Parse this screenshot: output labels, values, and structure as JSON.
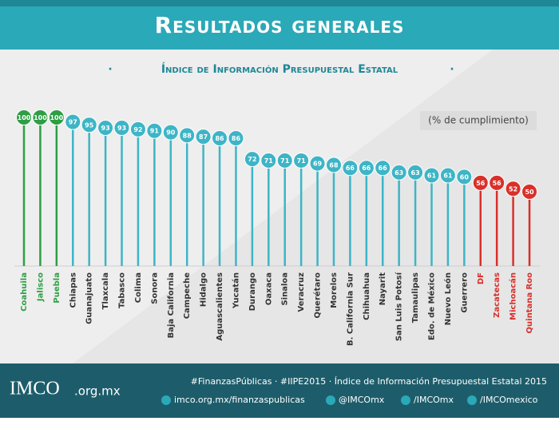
{
  "header": {
    "title": "Resultados generales"
  },
  "chart_data": {
    "type": "lollipop",
    "title": "Índice de Información Presupuestal Estatal",
    "y_label": "(% de cumplimiento)",
    "categories": [
      "Coahuila",
      "Jalisco",
      "Puebla",
      "Chiapas",
      "Guanajuato",
      "Tlaxcala",
      "Tabasco",
      "Colima",
      "Sonora",
      "Baja California",
      "Campeche",
      "Hidalgo",
      "Aguascalientes",
      "Yucatán",
      "Durango",
      "Oaxaca",
      "Sinaloa",
      "Veracruz",
      "Querétaro",
      "Morelos",
      "B. California Sur",
      "Chihuahua",
      "Nayarit",
      "San Luis Potosí",
      "Tamaulipas",
      "Edo. de México",
      "Nuevo León",
      "Guerrero",
      "DF",
      "Zacatecas",
      "Michoacán",
      "Quintana Roo"
    ],
    "values": [
      100,
      100,
      100,
      97,
      95,
      93,
      93,
      92,
      91,
      90,
      88,
      87,
      86,
      86,
      72,
      71,
      71,
      71,
      69,
      68,
      66,
      66,
      66,
      63,
      63,
      61,
      61,
      60,
      56,
      56,
      52,
      50
    ],
    "colors": [
      "#2e9e45",
      "#2e9e45",
      "#2e9e45",
      "#3db5c6",
      "#3db5c6",
      "#3db5c6",
      "#3db5c6",
      "#3db5c6",
      "#3db5c6",
      "#3db5c6",
      "#3db5c6",
      "#3db5c6",
      "#3db5c6",
      "#3db5c6",
      "#3db5c6",
      "#3db5c6",
      "#3db5c6",
      "#3db5c6",
      "#3db5c6",
      "#3db5c6",
      "#3db5c6",
      "#3db5c6",
      "#3db5c6",
      "#3db5c6",
      "#3db5c6",
      "#3db5c6",
      "#3db5c6",
      "#3db5c6",
      "#d9302a",
      "#d9302a",
      "#d9302a",
      "#d9302a"
    ],
    "label_colors": [
      "#2e9e45",
      "#2e9e45",
      "#2e9e45",
      "#333333",
      "#333333",
      "#333333",
      "#333333",
      "#333333",
      "#333333",
      "#333333",
      "#333333",
      "#333333",
      "#333333",
      "#333333",
      "#333333",
      "#333333",
      "#333333",
      "#333333",
      "#333333",
      "#333333",
      "#333333",
      "#333333",
      "#333333",
      "#333333",
      "#333333",
      "#333333",
      "#333333",
      "#333333",
      "#d9302a",
      "#d9302a",
      "#d9302a",
      "#d9302a"
    ],
    "ylim": [
      0,
      100
    ]
  },
  "footer": {
    "logo_name": "IMCO",
    "logo_domain": ".org.mx",
    "tagline": "#FinanzasPúblicas · #IIPE2015 · Índice de Información Presupuestal Estatal 2015",
    "web": "imco.org.mx/finanzaspublicas",
    "twitter": "@IMCOmx",
    "facebook": "/IMCOmx",
    "youtube": "/IMCOmexico"
  }
}
